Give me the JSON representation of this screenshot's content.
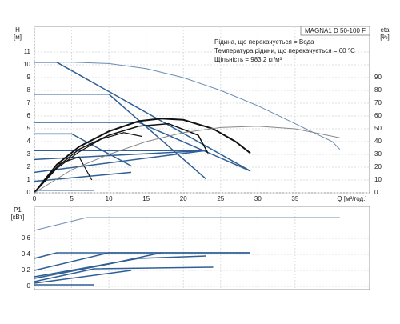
{
  "chart_data": [
    {
      "type": "line",
      "title": "MAGNA1 D 50-100 F",
      "annotations": [
        "Рідина, що перекачується = Вода",
        "Температура рідини, що перекачується = 60 °C",
        "Щільність = 983.2 кг/м³"
      ],
      "x_label": "Q [м³/год.]",
      "y_label": "H",
      "y_unit": "[м]",
      "y2_label": "eta",
      "y2_unit": "[%]",
      "xlim": [
        0,
        45
      ],
      "ylim": [
        0,
        13
      ],
      "y2lim": [
        0,
        130
      ],
      "grid": true,
      "xticks": [
        0,
        5,
        10,
        15,
        20,
        25,
        30,
        35
      ],
      "yticks": [
        0,
        1,
        2,
        3,
        4,
        5,
        6,
        7,
        8,
        9,
        10,
        11
      ],
      "y2ticks": [
        0,
        10,
        20,
        30,
        40,
        50,
        60,
        70,
        80,
        90
      ],
      "series": [
        {
          "color": "#6b8cb4",
          "width": 1,
          "x": [
            0,
            5,
            10,
            15,
            20,
            25,
            30,
            35,
            40,
            41
          ],
          "values": [
            10.2,
            10.2,
            10.1,
            9.7,
            9.0,
            8.0,
            6.8,
            5.4,
            4.0,
            3.4
          ]
        },
        {
          "color": "#2f5f95",
          "width": 1.5,
          "x": [
            0,
            3,
            29
          ],
          "values": [
            10.2,
            10.2,
            1.7
          ]
        },
        {
          "color": "#2f5f95",
          "width": 1.5,
          "x": [
            0,
            10,
            23
          ],
          "values": [
            7.7,
            7.7,
            1.1
          ]
        },
        {
          "color": "#2f5f95",
          "width": 1.5,
          "x": [
            0,
            14,
            29
          ],
          "values": [
            5.5,
            5.5,
            1.7
          ]
        },
        {
          "color": "#2f5f95",
          "width": 1.5,
          "x": [
            0,
            5,
            13
          ],
          "values": [
            4.6,
            4.6,
            2.1
          ]
        },
        {
          "color": "#2f5f95",
          "width": 1.5,
          "x": [
            0,
            23
          ],
          "values": [
            3.3,
            3.3
          ]
        },
        {
          "color": "#2f5f95",
          "width": 1.5,
          "x": [
            0,
            23
          ],
          "values": [
            2.6,
            3.3
          ]
        },
        {
          "color": "#2f5f95",
          "width": 1.5,
          "x": [
            0,
            23
          ],
          "values": [
            1.6,
            3.3
          ]
        },
        {
          "color": "#2f5f95",
          "width": 1.5,
          "x": [
            0,
            13
          ],
          "values": [
            0.9,
            1.6
          ]
        },
        {
          "color": "#2f5f95",
          "width": 1.5,
          "x": [
            0,
            8
          ],
          "values": [
            0.2,
            0.2
          ]
        },
        {
          "color": "#111111",
          "width": 2,
          "axis": "y2",
          "x": [
            0,
            3,
            6,
            10,
            14,
            17,
            20,
            24,
            27,
            29
          ],
          "values": [
            0,
            22,
            36,
            48,
            56,
            58,
            57,
            50,
            40,
            31
          ]
        },
        {
          "color": "#111111",
          "width": 1.5,
          "axis": "y2",
          "x": [
            0,
            3,
            6,
            10,
            14,
            18,
            22,
            23.3
          ],
          "values": [
            0,
            20,
            34,
            45,
            52,
            54,
            45,
            31
          ]
        },
        {
          "color": "#111111",
          "width": 1.2,
          "axis": "y2",
          "x": [
            0,
            3,
            6,
            9,
            12,
            14.5
          ],
          "values": [
            0,
            19,
            32,
            42,
            47,
            44
          ]
        },
        {
          "color": "#111111",
          "width": 1.2,
          "axis": "y2",
          "x": [
            0,
            3,
            6,
            7.7
          ],
          "values": [
            0,
            22,
            28,
            10
          ]
        },
        {
          "color": "#888888",
          "width": 1,
          "axis": "y2",
          "x": [
            0,
            5,
            10,
            15,
            20,
            25,
            30,
            35,
            41
          ],
          "values": [
            0,
            18,
            30,
            40,
            47,
            51,
            52,
            50,
            43
          ]
        }
      ]
    },
    {
      "type": "line",
      "y_label": "P1",
      "y_unit": "[кВт]",
      "xlim": [
        0,
        45
      ],
      "ylim": [
        -0.04,
        1.0
      ],
      "grid": true,
      "xticks": [
        0,
        5,
        10,
        15,
        20,
        25,
        30,
        35
      ],
      "yticks": [
        0,
        {
          "value": 0.2,
          "label": "0,2"
        },
        {
          "value": 0.4,
          "label": "0,4"
        },
        {
          "value": 0.6,
          "label": "0,6"
        }
      ],
      "series": [
        {
          "color": "#6b8cb4",
          "width": 1,
          "x": [
            0,
            7,
            41
          ],
          "values": [
            0.7,
            0.86,
            0.86
          ]
        },
        {
          "color": "#2f5f95",
          "width": 1.5,
          "x": [
            0,
            3,
            29
          ],
          "values": [
            0.35,
            0.42,
            0.42
          ]
        },
        {
          "color": "#2f5f95",
          "width": 1.5,
          "x": [
            0,
            10,
            29
          ],
          "values": [
            0.2,
            0.42,
            0.42
          ]
        },
        {
          "color": "#2f5f95",
          "width": 1.5,
          "x": [
            0,
            14,
            23
          ],
          "values": [
            0.12,
            0.35,
            0.38
          ]
        },
        {
          "color": "#2f5f95",
          "width": 1.5,
          "x": [
            0,
            10,
            17
          ],
          "values": [
            0.1,
            0.28,
            0.42
          ]
        },
        {
          "color": "#2f5f95",
          "width": 1.5,
          "x": [
            0,
            8,
            24
          ],
          "values": [
            0.06,
            0.22,
            0.24
          ]
        },
        {
          "color": "#2f5f95",
          "width": 1.5,
          "x": [
            0,
            13
          ],
          "values": [
            0.04,
            0.2
          ]
        },
        {
          "color": "#2f5f95",
          "width": 1.5,
          "x": [
            0,
            8
          ],
          "values": [
            0.02,
            0.02
          ]
        }
      ]
    }
  ]
}
